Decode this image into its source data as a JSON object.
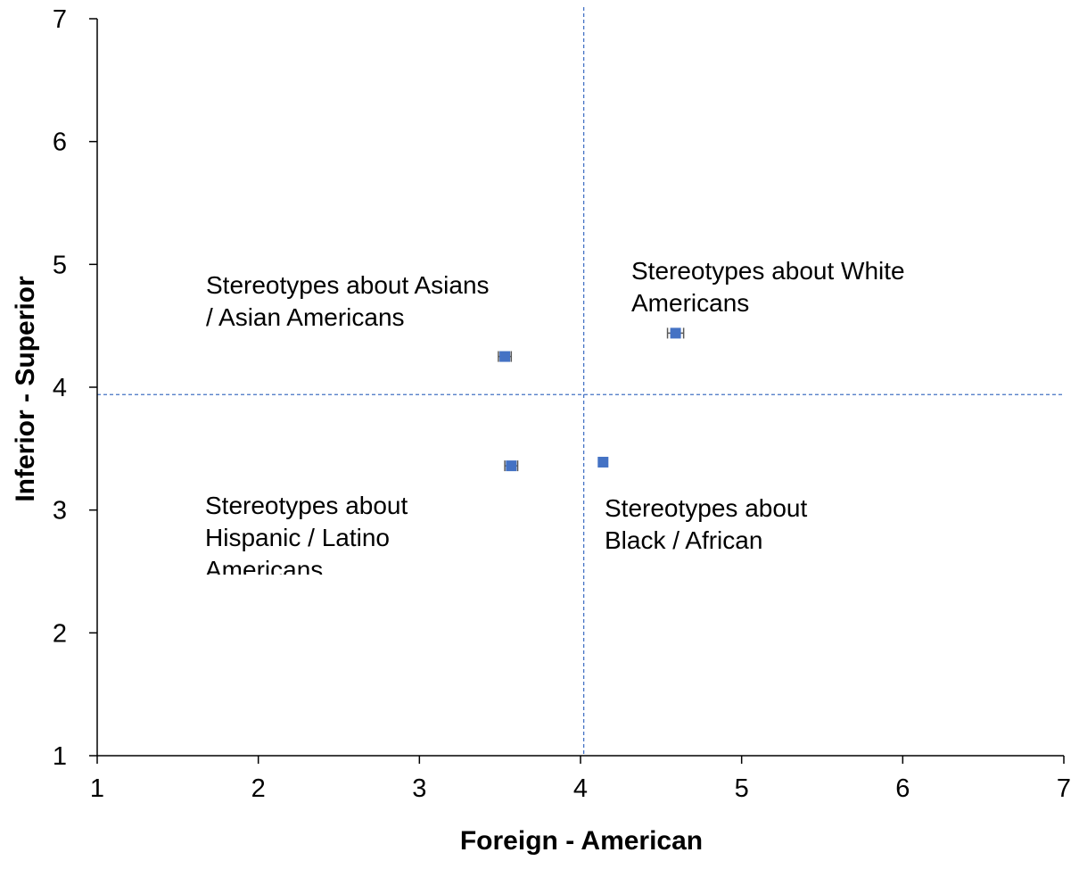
{
  "chart_data": {
    "type": "scatter",
    "xlabel": "Foreign - American",
    "ylabel": "Inferior - Superior",
    "xlim": [
      1,
      7
    ],
    "ylim": [
      1,
      7
    ],
    "x_ticks": [
      1,
      2,
      3,
      4,
      5,
      6,
      7
    ],
    "y_ticks": [
      1,
      2,
      3,
      4,
      5,
      6,
      7
    ],
    "grid": false,
    "reference_lines": {
      "x": 4.02,
      "y": 3.94
    },
    "points": [
      {
        "x": 3.53,
        "y": 4.25,
        "x_err": 0.04
      },
      {
        "x": 4.59,
        "y": 4.44,
        "x_err": 0.05
      },
      {
        "x": 3.57,
        "y": 3.36,
        "x_err": 0.04
      },
      {
        "x": 4.14,
        "y": 3.39,
        "x_err": 0.0
      }
    ],
    "annotations": [
      {
        "lines": [
          "Stereotypes about Asians",
          "/ Asian Americans"
        ]
      },
      {
        "lines": [
          "Stereotypes about White",
          "Americans"
        ]
      },
      {
        "lines": [
          "Stereotypes about",
          "Hispanic / Latino",
          "Americans"
        ]
      },
      {
        "lines": [
          "Stereotypes about",
          "Black / African"
        ]
      }
    ],
    "marker_color": "#4472c4",
    "refline_color": "#4472c4",
    "errorbar_color": "#595959"
  }
}
